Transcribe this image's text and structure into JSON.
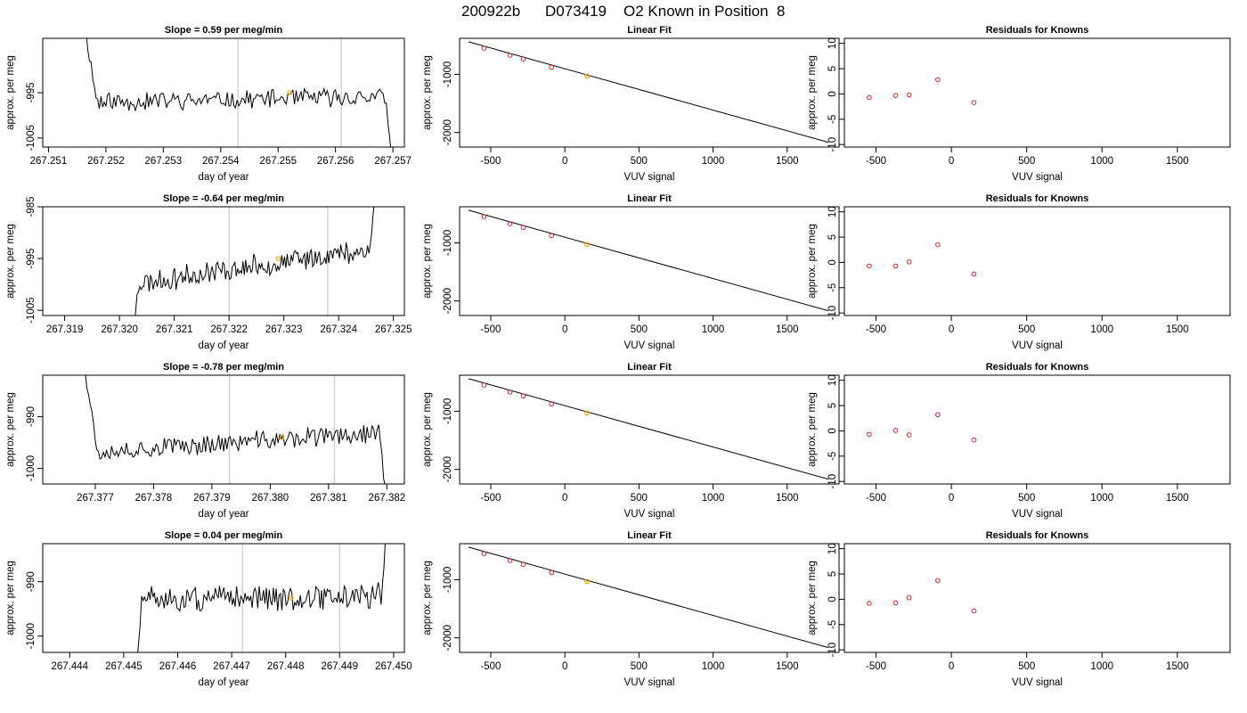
{
  "figure": {
    "title_parts": [
      "200922b",
      "D073419",
      "O2 Known in Position  8"
    ]
  },
  "chart_data": [
    {
      "type": "line",
      "row": 0,
      "col": 0,
      "title": "Slope =  0.59  per meg/min",
      "xlabel": "day of year",
      "ylabel": "approx. per meg",
      "xlim": [
        267.2509,
        267.2572
      ],
      "ylim": [
        -1007,
        -983
      ],
      "xticks": [
        267.251,
        267.252,
        267.253,
        267.254,
        267.255,
        267.256,
        267.257
      ],
      "xtick_labels": [
        "267.251",
        "267.252",
        "267.253",
        "267.254",
        "267.255",
        "267.256",
        "267.257"
      ],
      "yticks": [
        -1005,
        -995
      ],
      "ytick_labels": [
        "-1005",
        "-995"
      ],
      "vlines": [
        267.2543,
        267.2561
      ],
      "marker": {
        "x": 267.2552,
        "y": -995,
        "color": "#ffa500"
      },
      "trace": {
        "x0": 267.2516,
        "x1": 267.257,
        "n": 190,
        "seed": 11,
        "baseline": -996.5,
        "trend": 0.6,
        "amp": 2.8,
        "start_high": true,
        "end_low": true
      }
    },
    {
      "type": "scatter",
      "row": 0,
      "col": 1,
      "title": "Linear Fit",
      "xlabel": "VUV signal",
      "ylabel": "approx. per meg",
      "xlim": [
        -710,
        1850
      ],
      "ylim": [
        -2250,
        -380
      ],
      "xticks": [
        -500,
        0,
        500,
        1000,
        1500
      ],
      "xtick_labels": [
        "-500",
        "0",
        "500",
        "1000",
        "1500"
      ],
      "yticks": [
        -2000,
        -1000
      ],
      "ytick_labels": [
        "-2000",
        "-1000"
      ],
      "fit_line": {
        "x": [
          -650,
          1780
        ],
        "y": [
          -440,
          -2170
        ]
      },
      "points": {
        "x": [
          -545,
          -370,
          -280,
          -90
        ],
        "y": [
          -550,
          -672,
          -736,
          -877
        ]
      },
      "highlight": {
        "x": 150,
        "y": -1030,
        "color": "#ffa500"
      }
    },
    {
      "type": "scatter",
      "row": 0,
      "col": 2,
      "title": "Residuals for Knowns",
      "xlabel": "VUV signal",
      "ylabel": "approx. per meg",
      "xlim": [
        -710,
        1850
      ],
      "ylim": [
        -10.5,
        11
      ],
      "xticks": [
        -500,
        0,
        500,
        1000,
        1500
      ],
      "xtick_labels": [
        "-500",
        "0",
        "500",
        "1000",
        "1500"
      ],
      "yticks": [
        -10,
        -5,
        0,
        5,
        10
      ],
      "ytick_labels": [
        "-10",
        "-5",
        "0",
        "5",
        "10"
      ],
      "points": {
        "x": [
          -545,
          -370,
          -280,
          -90,
          150
        ],
        "y": [
          -0.7,
          -0.3,
          -0.2,
          2.8,
          -1.7
        ]
      }
    },
    {
      "type": "line",
      "row": 1,
      "col": 0,
      "title": "Slope =  -0.64  per meg/min",
      "xlabel": "day of year",
      "ylabel": "approx. per meg",
      "xlim": [
        267.3186,
        267.3252
      ],
      "ylim": [
        -1006,
        -985
      ],
      "xticks": [
        267.319,
        267.32,
        267.321,
        267.322,
        267.323,
        267.324,
        267.325
      ],
      "xtick_labels": [
        "267.319",
        "267.320",
        "267.321",
        "267.322",
        "267.323",
        "267.324",
        "267.325"
      ],
      "yticks": [
        -1005,
        -995,
        -985
      ],
      "ytick_labels": [
        "-1005",
        "-995",
        "-985"
      ],
      "vlines": [
        267.322,
        267.3238
      ],
      "marker": {
        "x": 267.3229,
        "y": -995,
        "color": "#ffa500"
      },
      "trace": {
        "x0": 267.3202,
        "x1": 267.3247,
        "n": 185,
        "seed": 23,
        "baseline": -996.5,
        "trend": 3.5,
        "amp": 3.0,
        "start_low": true,
        "end_high": true
      }
    },
    {
      "type": "scatter",
      "row": 1,
      "col": 1,
      "title": "Linear Fit",
      "xlabel": "VUV signal",
      "ylabel": "approx. per meg",
      "xlim": [
        -710,
        1850
      ],
      "ylim": [
        -2250,
        -380
      ],
      "xticks": [
        -500,
        0,
        500,
        1000,
        1500
      ],
      "xtick_labels": [
        "-500",
        "0",
        "500",
        "1000",
        "1500"
      ],
      "yticks": [
        -2000,
        -1000
      ],
      "ytick_labels": [
        "-2000",
        "-1000"
      ],
      "fit_line": {
        "x": [
          -650,
          1780
        ],
        "y": [
          -440,
          -2170
        ]
      },
      "points": {
        "x": [
          -545,
          -370,
          -280,
          -90
        ],
        "y": [
          -550,
          -672,
          -736,
          -877
        ]
      },
      "highlight": {
        "x": 150,
        "y": -1030,
        "color": "#ffa500"
      }
    },
    {
      "type": "scatter",
      "row": 1,
      "col": 2,
      "title": "Residuals for Knowns",
      "xlabel": "VUV signal",
      "ylabel": "approx. per meg",
      "xlim": [
        -710,
        1850
      ],
      "ylim": [
        -10.5,
        11
      ],
      "xticks": [
        -500,
        0,
        500,
        1000,
        1500
      ],
      "xtick_labels": [
        "-500",
        "0",
        "500",
        "1000",
        "1500"
      ],
      "yticks": [
        -10,
        -5,
        0,
        5,
        10
      ],
      "ytick_labels": [
        "-10",
        "-5",
        "0",
        "5",
        "10"
      ],
      "points": {
        "x": [
          -545,
          -370,
          -280,
          -90,
          150
        ],
        "y": [
          -0.7,
          -0.7,
          0.1,
          3.5,
          -2.3
        ]
      }
    },
    {
      "type": "line",
      "row": 2,
      "col": 0,
      "title": "Slope =  -0.78  per meg/min",
      "xlabel": "day of year",
      "ylabel": "approx. per meg",
      "xlim": [
        267.3761,
        267.3823
      ],
      "ylim": [
        -1003,
        -982
      ],
      "xticks": [
        267.377,
        267.378,
        267.379,
        267.38,
        267.381,
        267.382
      ],
      "xtick_labels": [
        "267.377",
        "267.378",
        "267.379",
        "267.380",
        "267.381",
        "267.382"
      ],
      "yticks": [
        -1000,
        -990
      ],
      "ytick_labels": [
        "-1000",
        "-990"
      ],
      "vlines": [
        267.3793,
        267.3811
      ],
      "marker": {
        "x": 267.3802,
        "y": -994,
        "color": "#ffa500"
      },
      "trace": {
        "x0": 267.3768,
        "x1": 267.382,
        "n": 185,
        "seed": 37,
        "baseline": -995,
        "trend": 2.0,
        "amp": 2.6,
        "start_high": true,
        "end_low": true
      }
    },
    {
      "type": "scatter",
      "row": 2,
      "col": 1,
      "title": "Linear Fit",
      "xlabel": "VUV signal",
      "ylabel": "approx. per meg",
      "xlim": [
        -710,
        1850
      ],
      "ylim": [
        -2250,
        -380
      ],
      "xticks": [
        -500,
        0,
        500,
        1000,
        1500
      ],
      "xtick_labels": [
        "-500",
        "0",
        "500",
        "1000",
        "1500"
      ],
      "yticks": [
        -2000,
        -1000
      ],
      "ytick_labels": [
        "-2000",
        "-1000"
      ],
      "fit_line": {
        "x": [
          -650,
          1780
        ],
        "y": [
          -440,
          -2170
        ]
      },
      "points": {
        "x": [
          -545,
          -370,
          -280,
          -90
        ],
        "y": [
          -550,
          -672,
          -736,
          -877
        ]
      },
      "highlight": {
        "x": 150,
        "y": -1030,
        "color": "#ffa500"
      }
    },
    {
      "type": "scatter",
      "row": 2,
      "col": 2,
      "title": "Residuals for Knowns",
      "xlabel": "VUV signal",
      "ylabel": "approx. per meg",
      "xlim": [
        -710,
        1850
      ],
      "ylim": [
        -10.5,
        11
      ],
      "xticks": [
        -500,
        0,
        500,
        1000,
        1500
      ],
      "xtick_labels": [
        "-500",
        "0",
        "500",
        "1000",
        "1500"
      ],
      "yticks": [
        -10,
        -5,
        0,
        5,
        10
      ],
      "ytick_labels": [
        "-10",
        "-5",
        "0",
        "5",
        "10"
      ],
      "points": {
        "x": [
          -545,
          -370,
          -280,
          -90,
          150
        ],
        "y": [
          -0.7,
          0.1,
          -0.8,
          3.2,
          -1.8
        ]
      }
    },
    {
      "type": "line",
      "row": 3,
      "col": 0,
      "title": "Slope =  0.04  per meg/min",
      "xlabel": "day of year",
      "ylabel": "approx. per meg",
      "xlim": [
        267.4435,
        267.4502
      ],
      "ylim": [
        -1003,
        -983
      ],
      "xticks": [
        267.444,
        267.445,
        267.446,
        267.447,
        267.448,
        267.449,
        267.45
      ],
      "xtick_labels": [
        "267.444",
        "267.445",
        "267.446",
        "267.447",
        "267.448",
        "267.449",
        "267.450"
      ],
      "yticks": [
        -1000,
        -990
      ],
      "ytick_labels": [
        "-1000",
        "-990"
      ],
      "vlines": [
        267.4472,
        267.449
      ],
      "marker": {
        "x": 267.4481,
        "y": -993,
        "color": "#ffa500"
      },
      "trace": {
        "x0": 267.4452,
        "x1": 267.4499,
        "n": 180,
        "seed": 51,
        "baseline": -993,
        "trend": 0.4,
        "amp": 3.2,
        "start_low": true,
        "end_high": true
      }
    },
    {
      "type": "scatter",
      "row": 3,
      "col": 1,
      "title": "Linear Fit",
      "xlabel": "VUV signal",
      "ylabel": "approx. per meg",
      "xlim": [
        -710,
        1850
      ],
      "ylim": [
        -2250,
        -380
      ],
      "xticks": [
        -500,
        0,
        500,
        1000,
        1500
      ],
      "xtick_labels": [
        "-500",
        "0",
        "500",
        "1000",
        "1500"
      ],
      "yticks": [
        -2000,
        -1000
      ],
      "ytick_labels": [
        "-2000",
        "-1000"
      ],
      "fit_line": {
        "x": [
          -650,
          1780
        ],
        "y": [
          -440,
          -2170
        ]
      },
      "points": {
        "x": [
          -545,
          -370,
          -280,
          -90
        ],
        "y": [
          -550,
          -672,
          -736,
          -877
        ]
      },
      "highlight": {
        "x": 150,
        "y": -1030,
        "color": "#ffa500"
      }
    },
    {
      "type": "scatter",
      "row": 3,
      "col": 2,
      "title": "Residuals for Knowns",
      "xlabel": "VUV signal",
      "ylabel": "approx. per meg",
      "xlim": [
        -710,
        1850
      ],
      "ylim": [
        -10.5,
        11
      ],
      "xticks": [
        -500,
        0,
        500,
        1000,
        1500
      ],
      "xtick_labels": [
        "-500",
        "0",
        "500",
        "1000",
        "1500"
      ],
      "yticks": [
        -10,
        -5,
        0,
        5,
        10
      ],
      "ytick_labels": [
        "-10",
        "-5",
        "0",
        "5",
        "10"
      ],
      "points": {
        "x": [
          -545,
          -370,
          -280,
          -90,
          150
        ],
        "y": [
          -0.8,
          -0.7,
          0.3,
          3.7,
          -2.3
        ]
      }
    }
  ]
}
